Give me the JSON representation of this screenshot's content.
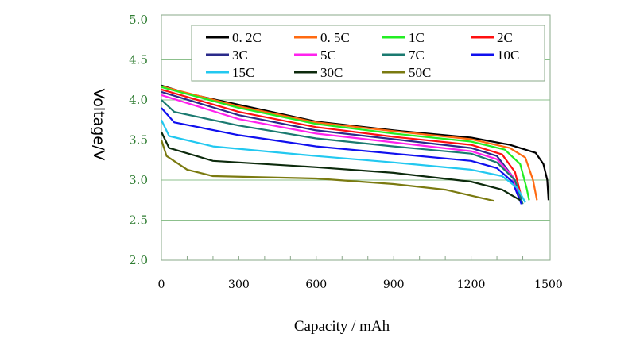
{
  "chart_data": {
    "type": "line",
    "xlabel": "Capacity / mAh",
    "ylabel": "Voltage/V",
    "xlim": [
      0,
      1500
    ],
    "ylim": [
      2.0,
      5.0
    ],
    "xticks": [
      "0",
      "300",
      "600",
      "900",
      "1200",
      "1500"
    ],
    "yticks": [
      "2.0",
      "2.5",
      "3.0",
      "3.5",
      "4.0",
      "4.5",
      "5.0"
    ],
    "grid": "horizontal",
    "legend_position": "top",
    "series": [
      {
        "name": "0. 2C",
        "color": "#000000",
        "points": [
          [
            0,
            4.18
          ],
          [
            100,
            4.08
          ],
          [
            300,
            3.94
          ],
          [
            600,
            3.73
          ],
          [
            900,
            3.62
          ],
          [
            1200,
            3.53
          ],
          [
            1350,
            3.44
          ],
          [
            1450,
            3.34
          ],
          [
            1480,
            3.2
          ],
          [
            1495,
            3.0
          ],
          [
            1500,
            2.75
          ]
        ]
      },
      {
        "name": "0. 5C",
        "color": "#ff6a10",
        "points": [
          [
            0,
            4.17
          ],
          [
            300,
            3.92
          ],
          [
            600,
            3.72
          ],
          [
            900,
            3.61
          ],
          [
            1200,
            3.51
          ],
          [
            1350,
            3.4
          ],
          [
            1410,
            3.28
          ],
          [
            1440,
            3.0
          ],
          [
            1455,
            2.75
          ]
        ]
      },
      {
        "name": "1C",
        "color": "#22ee22",
        "points": [
          [
            0,
            4.16
          ],
          [
            300,
            3.9
          ],
          [
            600,
            3.7
          ],
          [
            900,
            3.58
          ],
          [
            1200,
            3.48
          ],
          [
            1330,
            3.38
          ],
          [
            1390,
            3.2
          ],
          [
            1415,
            2.9
          ],
          [
            1425,
            2.75
          ]
        ]
      },
      {
        "name": "2C",
        "color": "#ff1010",
        "points": [
          [
            0,
            4.13
          ],
          [
            300,
            3.85
          ],
          [
            600,
            3.66
          ],
          [
            900,
            3.54
          ],
          [
            1200,
            3.44
          ],
          [
            1320,
            3.32
          ],
          [
            1370,
            3.1
          ],
          [
            1390,
            2.85
          ],
          [
            1395,
            2.72
          ]
        ]
      },
      {
        "name": "3C",
        "color": "#2a2a8a",
        "points": [
          [
            0,
            4.1
          ],
          [
            300,
            3.81
          ],
          [
            600,
            3.62
          ],
          [
            900,
            3.51
          ],
          [
            1200,
            3.4
          ],
          [
            1300,
            3.3
          ],
          [
            1360,
            3.05
          ],
          [
            1390,
            2.75
          ]
        ]
      },
      {
        "name": "5C",
        "color": "#ff22ee",
        "points": [
          [
            0,
            4.06
          ],
          [
            300,
            3.76
          ],
          [
            600,
            3.58
          ],
          [
            900,
            3.47
          ],
          [
            1200,
            3.36
          ],
          [
            1300,
            3.26
          ],
          [
            1360,
            3.05
          ],
          [
            1395,
            2.72
          ]
        ]
      },
      {
        "name": "7C",
        "color": "#1a7a70",
        "points": [
          [
            0,
            4.0
          ],
          [
            50,
            3.85
          ],
          [
            300,
            3.68
          ],
          [
            600,
            3.52
          ],
          [
            900,
            3.42
          ],
          [
            1200,
            3.33
          ],
          [
            1300,
            3.22
          ],
          [
            1370,
            3.0
          ],
          [
            1400,
            2.7
          ]
        ]
      },
      {
        "name": "10C",
        "color": "#1010ee",
        "points": [
          [
            0,
            3.9
          ],
          [
            50,
            3.72
          ],
          [
            300,
            3.56
          ],
          [
            600,
            3.42
          ],
          [
            900,
            3.33
          ],
          [
            1200,
            3.24
          ],
          [
            1300,
            3.15
          ],
          [
            1360,
            2.98
          ],
          [
            1395,
            2.7
          ]
        ]
      },
      {
        "name": "15C",
        "color": "#22c8f0",
        "points": [
          [
            0,
            3.75
          ],
          [
            30,
            3.55
          ],
          [
            200,
            3.42
          ],
          [
            600,
            3.3
          ],
          [
            900,
            3.22
          ],
          [
            1200,
            3.13
          ],
          [
            1320,
            3.05
          ],
          [
            1380,
            2.9
          ],
          [
            1410,
            2.72
          ]
        ]
      },
      {
        "name": "30C",
        "color": "#0c2a0c",
        "points": [
          [
            0,
            3.6
          ],
          [
            30,
            3.4
          ],
          [
            200,
            3.24
          ],
          [
            600,
            3.16
          ],
          [
            900,
            3.09
          ],
          [
            1200,
            2.98
          ],
          [
            1320,
            2.88
          ],
          [
            1390,
            2.75
          ]
        ]
      },
      {
        "name": "50C",
        "color": "#7a7a10",
        "points": [
          [
            0,
            3.5
          ],
          [
            20,
            3.3
          ],
          [
            100,
            3.13
          ],
          [
            200,
            3.05
          ],
          [
            600,
            3.02
          ],
          [
            900,
            2.95
          ],
          [
            1100,
            2.88
          ],
          [
            1290,
            2.74
          ]
        ]
      }
    ]
  }
}
